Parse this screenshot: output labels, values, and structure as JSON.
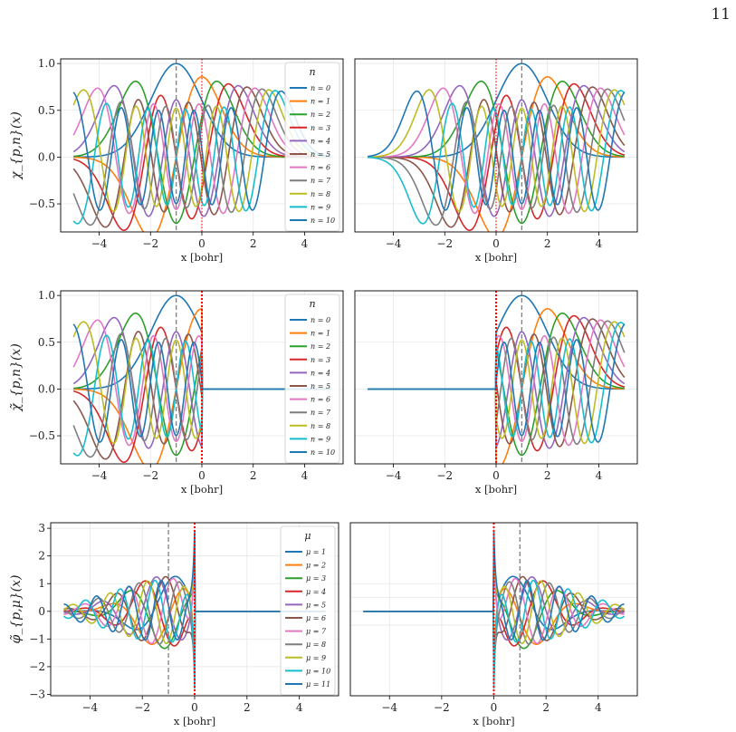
{
  "page_number": "11",
  "colors": {
    "series": [
      "#1f77b4",
      "#ff7f0e",
      "#2ca02c",
      "#d62728",
      "#9467bd",
      "#8c564b",
      "#e377c2",
      "#7f7f7f",
      "#bcbd22",
      "#17becf",
      "#1f77b4"
    ],
    "nucleus_line": "#808080",
    "boundary_line": "#ff0000"
  },
  "chart_data": [
    {
      "type": "line",
      "row": 1,
      "col": 1,
      "side": "left",
      "ylabel": "χ_{p,n}(x)",
      "xlabel": "x [bohr]",
      "xlim": [
        -5.5,
        5.5
      ],
      "ylim": [
        -0.8,
        1.05
      ],
      "xticks": [
        -4,
        -2,
        0,
        2,
        4
      ],
      "yticks": [
        -0.5,
        0.0,
        0.5,
        1.0
      ],
      "ytick_labels": [
        "−0.5",
        "0.0",
        "0.5",
        "1.0"
      ],
      "xtick_labels": [
        "−4",
        "−2",
        "0",
        "2",
        "4"
      ],
      "center": -1,
      "boundary": 0,
      "boundary_style": "dotted-thin",
      "family": "hermite",
      "truncated": false,
      "show_ylabels": true,
      "legend": {
        "title": "n",
        "position": "upper right",
        "entries": [
          "n = 0",
          "n = 1",
          "n = 2",
          "n = 3",
          "n = 4",
          "n = 5",
          "n = 6",
          "n = 7",
          "n = 8",
          "n = 9",
          "n = 10"
        ]
      }
    },
    {
      "type": "line",
      "row": 1,
      "col": 2,
      "side": "right",
      "xlabel": "x [bohr]",
      "xlim": [
        -5.5,
        5.5
      ],
      "ylim": [
        -0.8,
        1.05
      ],
      "xticks": [
        -4,
        -2,
        0,
        2,
        4
      ],
      "xtick_labels": [
        "−4",
        "−2",
        "0",
        "2",
        "4"
      ],
      "center": 1,
      "boundary": 0,
      "boundary_style": "dotted-thin",
      "family": "hermite",
      "truncated": false,
      "show_ylabels": false
    },
    {
      "type": "line",
      "row": 2,
      "col": 1,
      "side": "left",
      "ylabel": "χ̃_{p,n}(x)",
      "xlabel": "x [bohr]",
      "xlim": [
        -5.5,
        5.5
      ],
      "ylim": [
        -0.8,
        1.05
      ],
      "xticks": [
        -4,
        -2,
        0,
        2,
        4
      ],
      "yticks": [
        -0.5,
        0.0,
        0.5,
        1.0
      ],
      "ytick_labels": [
        "−0.5",
        "0.0",
        "0.5",
        "1.0"
      ],
      "xtick_labels": [
        "−4",
        "−2",
        "0",
        "2",
        "4"
      ],
      "center": -1,
      "boundary": 0,
      "boundary_style": "dotted-thick",
      "family": "hermite",
      "truncated": true,
      "show_ylabels": true,
      "legend": {
        "title": "n",
        "position": "upper right",
        "entries": [
          "n = 0",
          "n = 1",
          "n = 2",
          "n = 3",
          "n = 4",
          "n = 5",
          "n = 6",
          "n = 7",
          "n = 8",
          "n = 9",
          "n = 10"
        ]
      }
    },
    {
      "type": "line",
      "row": 2,
      "col": 2,
      "side": "right",
      "xlabel": "x [bohr]",
      "xlim": [
        -5.5,
        5.5
      ],
      "ylim": [
        -0.8,
        1.05
      ],
      "xticks": [
        -4,
        -2,
        0,
        2,
        4
      ],
      "xtick_labels": [
        "−4",
        "−2",
        "0",
        "2",
        "4"
      ],
      "center": 1,
      "boundary": 0,
      "boundary_style": "dotted-thick",
      "family": "hermite",
      "truncated": true,
      "show_ylabels": false
    },
    {
      "type": "line",
      "row": 3,
      "col": 1,
      "side": "left",
      "ylabel": "φ̃_{p,μ}(x)",
      "xlabel": "x [bohr]",
      "xlim": [
        -5.5,
        5.5
      ],
      "ylim": [
        -3.05,
        3.2
      ],
      "xticks": [
        -4,
        -2,
        0,
        2,
        4
      ],
      "yticks": [
        -3,
        -2,
        -1,
        0,
        1,
        2,
        3
      ],
      "ytick_labels": [
        "−3",
        "−2",
        "−1",
        "0",
        "1",
        "2",
        "3"
      ],
      "xtick_labels": [
        "−4",
        "−2",
        "0",
        "2",
        "4"
      ],
      "center": -1,
      "boundary": 0,
      "boundary_style": "dotted-thick",
      "family": "orthogonalized",
      "truncated": true,
      "show_ylabels": true,
      "legend": {
        "title": "μ",
        "position": "upper right",
        "entries": [
          "μ = 1",
          "μ = 2",
          "μ = 3",
          "μ = 4",
          "μ = 5",
          "μ = 6",
          "μ = 7",
          "μ = 8",
          "μ = 9",
          "μ = 10",
          "μ = 11"
        ]
      }
    },
    {
      "type": "line",
      "row": 3,
      "col": 2,
      "side": "right",
      "xlabel": "x [bohr]",
      "xlim": [
        -5.5,
        5.5
      ],
      "ylim": [
        -3.05,
        3.2
      ],
      "xticks": [
        -4,
        -2,
        0,
        2,
        4
      ],
      "xtick_labels": [
        "−4",
        "−2",
        "0",
        "2",
        "4"
      ],
      "center": 1,
      "boundary": 0,
      "boundary_style": "dotted-thick",
      "family": "orthogonalized",
      "truncated": true,
      "show_ylabels": false
    }
  ]
}
